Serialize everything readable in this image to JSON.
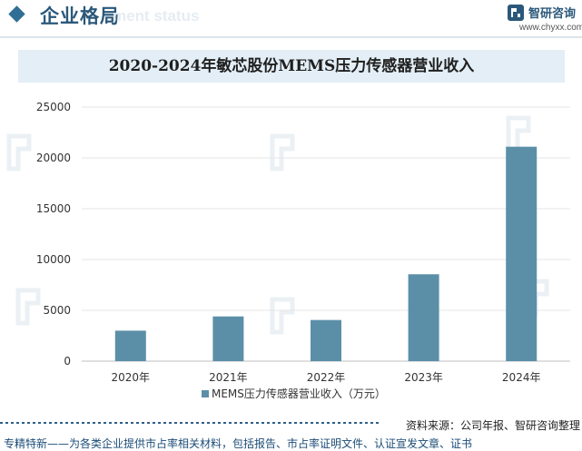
{
  "header": {
    "section_title": "企业格局",
    "ghost_text": "ment status",
    "brand_name": "智研咨询",
    "brand_url": "www.chyxx.com"
  },
  "chart_title": "2020-2024年敏芯股份MEMS压力传感器营业收入",
  "chart_data": {
    "type": "bar",
    "title": "2020-2024年敏芯股份MEMS压力传感器营业收入",
    "categories": [
      "2020年",
      "2021年",
      "2022年",
      "2023年",
      "2024年"
    ],
    "series": [
      {
        "name": "MEMS压力传感器营业收入（万元）",
        "values": [
          3000,
          4400,
          4050,
          8550,
          21100
        ]
      }
    ],
    "ylim": [
      0,
      25000
    ],
    "yticks": [
      0,
      5000,
      10000,
      15000,
      20000,
      25000
    ],
    "grid": true,
    "legend_position": "bottom",
    "colors": {
      "bar": "#5b8fa8"
    }
  },
  "footer": {
    "source": "资料来源：公司年报、智研咨询整理",
    "slogan": "专精特新——为各类企业提供市占率相关材料，包括报告、市占率证明文件、认证宣发文章、证书"
  },
  "colors": {
    "accent": "#2f6e95",
    "title_band": "#e3eef6",
    "footer_line": "#2e5f8a"
  }
}
